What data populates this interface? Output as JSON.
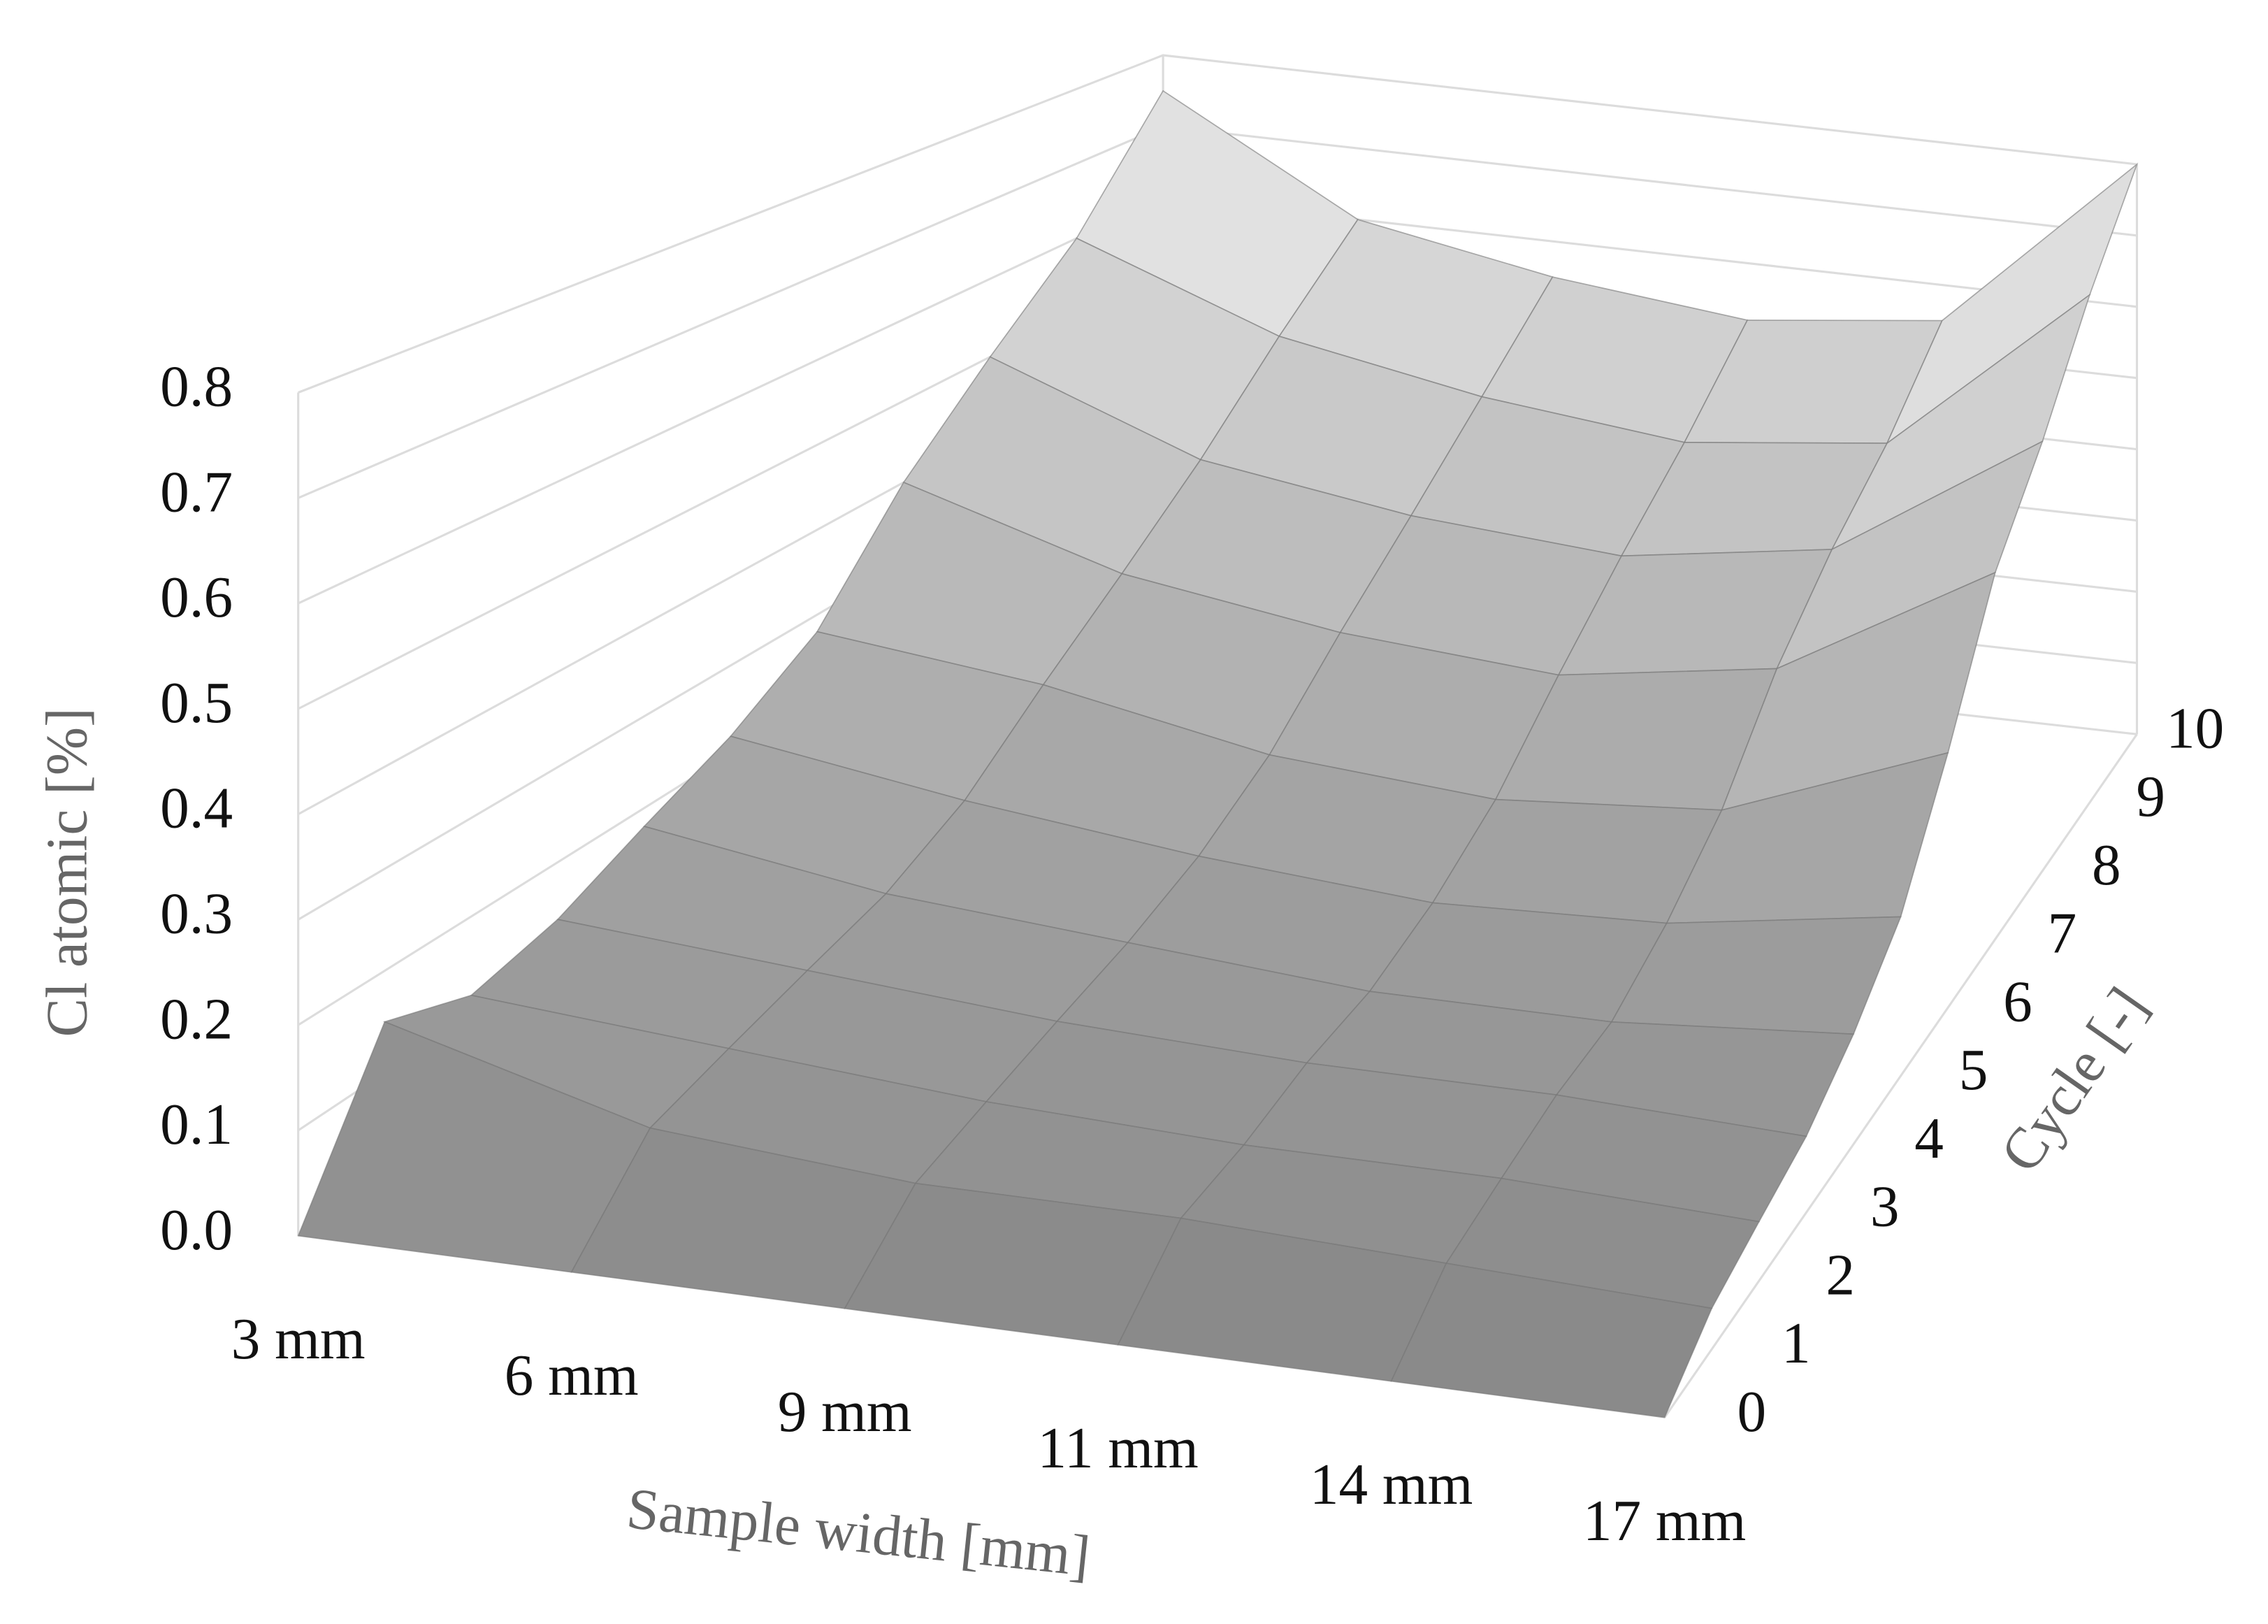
{
  "chart_data": {
    "type": "surface",
    "z_label": "Cl atomic [%]",
    "x_label": "Sample width [mm]",
    "depth_label": "Cycle [-]",
    "categories": [
      "3 mm",
      "6 mm",
      "9 mm",
      "11 mm",
      "14 mm",
      "17 mm"
    ],
    "series": [
      {
        "name": "0",
        "values": [
          0.0,
          0.0,
          0.0,
          0.0,
          0.0,
          0.0
        ]
      },
      {
        "name": "1",
        "values": [
          0.15,
          0.08,
          0.06,
          0.06,
          0.05,
          0.04
        ]
      },
      {
        "name": "2",
        "values": [
          0.12,
          0.1,
          0.08,
          0.07,
          0.07,
          0.06
        ]
      },
      {
        "name": "3",
        "values": [
          0.14,
          0.12,
          0.1,
          0.09,
          0.09,
          0.08
        ]
      },
      {
        "name": "4",
        "values": [
          0.18,
          0.14,
          0.12,
          0.1,
          0.1,
          0.12
        ]
      },
      {
        "name": "5",
        "values": [
          0.22,
          0.18,
          0.15,
          0.13,
          0.14,
          0.18
        ]
      },
      {
        "name": "6",
        "values": [
          0.28,
          0.25,
          0.2,
          0.18,
          0.2,
          0.3
        ]
      },
      {
        "name": "7",
        "values": [
          0.4,
          0.32,
          0.28,
          0.26,
          0.3,
          0.45
        ]
      },
      {
        "name": "8",
        "values": [
          0.5,
          0.4,
          0.36,
          0.34,
          0.38,
          0.55
        ]
      },
      {
        "name": "9",
        "values": [
          0.6,
          0.5,
          0.45,
          0.42,
          0.45,
          0.68
        ]
      },
      {
        "name": "10",
        "values": [
          0.75,
          0.6,
          0.55,
          0.52,
          0.55,
          0.8
        ]
      }
    ],
    "zlim": [
      0,
      0.8
    ],
    "zticks": [
      {
        "value": 0,
        "label": "0.0"
      },
      0.1,
      0.2,
      0.3,
      0.4,
      0.5,
      0.6,
      0.7,
      0.8
    ],
    "grid": true,
    "colors": [
      "#8a8a8a",
      "#f4f4f4"
    ]
  }
}
